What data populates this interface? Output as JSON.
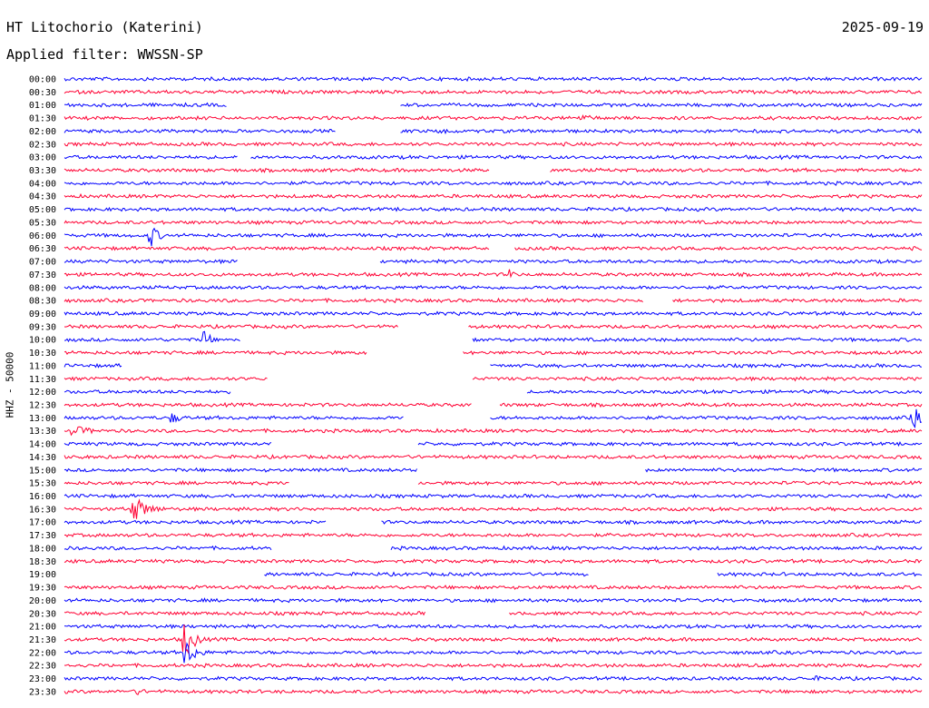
{
  "header": {
    "station": "HT Litochorio (Katerini)",
    "date": "2025-09-19",
    "filter": "Applied filter: WWSSN-SP"
  },
  "colors": {
    "even_row": "#0000ff",
    "odd_row": "#ff0033"
  },
  "chart_data": {
    "type": "line",
    "title": "HT Litochorio (Katerini)",
    "ylabel": "HHZ - 50000",
    "row_interval": "30 min",
    "rows": [
      {
        "label": "00:00"
      },
      {
        "label": "00:30"
      },
      {
        "label": "01:00"
      },
      {
        "label": "01:30"
      },
      {
        "label": "02:00"
      },
      {
        "label": "02:30"
      },
      {
        "label": "03:00"
      },
      {
        "label": "03:30"
      },
      {
        "label": "04:00"
      },
      {
        "label": "04:30"
      },
      {
        "label": "05:00"
      },
      {
        "label": "05:30"
      },
      {
        "label": "06:00"
      },
      {
        "label": "06:30"
      },
      {
        "label": "07:00"
      },
      {
        "label": "07:30"
      },
      {
        "label": "08:00"
      },
      {
        "label": "08:30"
      },
      {
        "label": "09:00"
      },
      {
        "label": "09:30"
      },
      {
        "label": "10:00"
      },
      {
        "label": "10:30"
      },
      {
        "label": "11:00"
      },
      {
        "label": "11:30"
      },
      {
        "label": "12:00"
      },
      {
        "label": "12:30"
      },
      {
        "label": "13:00"
      },
      {
        "label": "13:30"
      },
      {
        "label": "14:00"
      },
      {
        "label": "14:30"
      },
      {
        "label": "15:00"
      },
      {
        "label": "15:30"
      },
      {
        "label": "16:00"
      },
      {
        "label": "16:30"
      },
      {
        "label": "17:00"
      },
      {
        "label": "17:30"
      },
      {
        "label": "18:00"
      },
      {
        "label": "18:30"
      },
      {
        "label": "19:00"
      },
      {
        "label": "19:30"
      },
      {
        "label": "20:00"
      },
      {
        "label": "20:30"
      },
      {
        "label": "21:00"
      },
      {
        "label": "21:30"
      },
      {
        "label": "22:00"
      },
      {
        "label": "22:30"
      },
      {
        "label": "23:00"
      },
      {
        "label": "23:30"
      }
    ]
  }
}
